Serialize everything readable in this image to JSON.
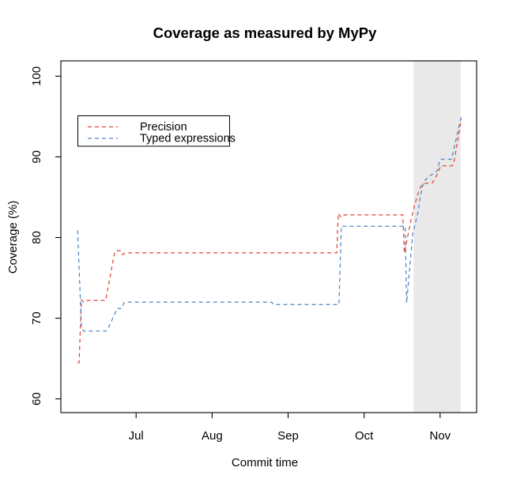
{
  "window": {
    "background": "#ffffff"
  },
  "chart_data": {
    "type": "line",
    "title": "Coverage as measured by MyPy",
    "xlabel": "Commit time",
    "ylabel": "Coverage (%)",
    "grid": false,
    "x_axis": {
      "unit": "month-of-year",
      "range": [
        6.01,
        11.48
      ],
      "ticks": [
        {
          "value": 7,
          "label": "Jul"
        },
        {
          "value": 8,
          "label": "Aug"
        },
        {
          "value": 9,
          "label": "Sep"
        },
        {
          "value": 10,
          "label": "Oct"
        },
        {
          "value": 11,
          "label": "Nov"
        }
      ]
    },
    "y_axis": {
      "range": [
        58.3,
        101.9
      ],
      "ticks": [
        60,
        70,
        80,
        90,
        100
      ]
    },
    "shaded_region": {
      "x0": 10.65,
      "x1": 11.27,
      "color": "#e9e9e9"
    },
    "legend": {
      "position": "upper-left-inset",
      "border": true
    },
    "series": [
      {
        "name": "Precision",
        "color": "#e04535",
        "line_style": "dashed",
        "points": [
          [
            6.23,
            64.5
          ],
          [
            6.25,
            64.5
          ],
          [
            6.28,
            72.3
          ],
          [
            6.31,
            72.0
          ],
          [
            6.34,
            72.2
          ],
          [
            6.6,
            72.2
          ],
          [
            6.72,
            78.3
          ],
          [
            6.79,
            78.4
          ],
          [
            6.82,
            77.9
          ],
          [
            6.86,
            78.1
          ],
          [
            9.64,
            78.1
          ],
          [
            9.66,
            83.0
          ],
          [
            9.7,
            82.5
          ],
          [
            9.74,
            82.8
          ],
          [
            10.51,
            82.8
          ],
          [
            10.53,
            78.1
          ],
          [
            10.62,
            82.3
          ],
          [
            10.67,
            84.2
          ],
          [
            10.71,
            85.5
          ],
          [
            10.75,
            86.4
          ],
          [
            10.8,
            86.7
          ],
          [
            10.9,
            86.8
          ],
          [
            10.95,
            87.6
          ],
          [
            10.99,
            88.5
          ],
          [
            11.01,
            88.9
          ],
          [
            11.16,
            88.9
          ],
          [
            11.18,
            89.3
          ],
          [
            11.28,
            94.7
          ]
        ]
      },
      {
        "name": "Typed expressions",
        "color": "#4f86c6",
        "line_style": "dashed",
        "points": [
          [
            6.23,
            80.9
          ],
          [
            6.28,
            68.9
          ],
          [
            6.31,
            68.4
          ],
          [
            6.6,
            68.4
          ],
          [
            6.63,
            68.7
          ],
          [
            6.75,
            71.2
          ],
          [
            6.81,
            71.2
          ],
          [
            6.84,
            71.9
          ],
          [
            6.9,
            72.0
          ],
          [
            8.78,
            72.0
          ],
          [
            8.81,
            71.7
          ],
          [
            9.67,
            71.7
          ],
          [
            9.7,
            81.4
          ],
          [
            10.54,
            81.4
          ],
          [
            10.56,
            71.9
          ],
          [
            10.64,
            80.5
          ],
          [
            10.71,
            83.2
          ],
          [
            10.74,
            85.1
          ],
          [
            10.77,
            86.4
          ],
          [
            10.8,
            87.1
          ],
          [
            10.87,
            87.7
          ],
          [
            10.93,
            88.0
          ],
          [
            10.97,
            88.4
          ],
          [
            10.99,
            89.5
          ],
          [
            11.01,
            89.7
          ],
          [
            11.15,
            89.7
          ],
          [
            11.28,
            95.1
          ]
        ]
      }
    ]
  }
}
